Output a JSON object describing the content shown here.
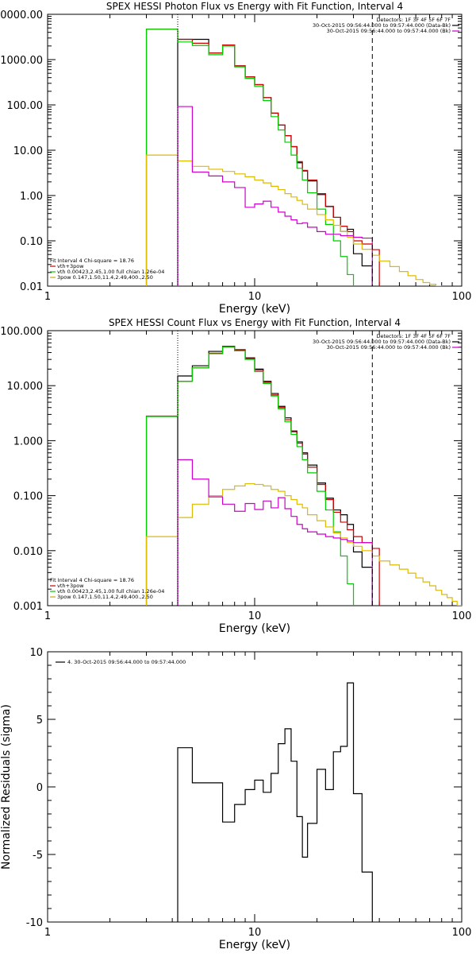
{
  "chart_data": [
    {
      "type": "line",
      "title": "SPEX HESSI Photon Flux vs Energy with Fit Function, Interval 4",
      "xlabel": "Energy (keV)",
      "ylabel": "",
      "xscale": "log",
      "yscale": "log",
      "xlim": [
        1,
        100
      ],
      "ylim": [
        0.01,
        10000
      ],
      "x_ticks": [
        "1",
        "10",
        "100"
      ],
      "y_ticks": [
        "0.01",
        "0.10",
        "1.00",
        "10.00",
        "100.00",
        "1000.00",
        "10000.00"
      ],
      "vlines": [
        {
          "x": 4.25,
          "style": "dotted"
        },
        {
          "x": 37,
          "style": "dashed"
        }
      ],
      "legend_top_right": [
        {
          "text": "Detectors: 1F 3F 4F 5F 6F 7F",
          "color": "#000000"
        },
        {
          "text": "30-Oct-2015 09:56:44.000 to 09:57:44.000 (Data-Bk)",
          "color": "#000000"
        },
        {
          "text": "30-Oct-2015 09:56:44.000 to 09:57:44.000 (Bk)",
          "color": "#cc00cc"
        }
      ],
      "legend_bottom_left": [
        {
          "text": "Fit Interval 4   Chi-square = 18.76",
          "color": "#000000"
        },
        {
          "text": "vth+3pow",
          "color": "#cc0000"
        },
        {
          "text": "vth 0.00423,2.45,1.00  full chian 1.26e-04",
          "color": "#00cc00"
        },
        {
          "text": "3pow 0.147,1.50,11.4,2.49,400.,2.50",
          "color": "#ccaa00"
        }
      ],
      "series": [
        {
          "name": "Data-Bk",
          "color": "#000000",
          "edges": [
            4.25,
            5,
            6,
            7,
            8,
            9,
            10,
            11,
            12,
            13,
            14,
            15,
            16,
            17,
            18,
            20,
            22,
            24,
            26,
            28,
            30,
            33,
            37
          ],
          "values": [
            2800,
            2800,
            1400,
            2100,
            730,
            415,
            280,
            145,
            66,
            36,
            21,
            12,
            5.3,
            3.5,
            2.1,
            1.05,
            0.57,
            0.33,
            0.16,
            0.18,
            0.052,
            0.028
          ]
        },
        {
          "name": "vth+3pow",
          "color": "#cc0000",
          "edges": [
            3,
            4.25,
            5,
            6,
            7,
            8,
            9,
            10,
            11,
            12,
            13,
            14,
            15,
            16,
            17,
            18,
            20,
            22,
            24,
            26,
            28,
            30,
            33,
            37,
            40
          ],
          "values": [
            4700,
            2800,
            2300,
            1400,
            2100,
            730,
            415,
            280,
            145,
            66,
            36,
            21,
            12,
            5.6,
            3.6,
            2.2,
            1.1,
            0.58,
            0.33,
            0.21,
            0.16,
            0.1,
            0.085,
            0.064
          ]
        },
        {
          "name": "vth",
          "color": "#00cc00",
          "edges": [
            3,
            4.25,
            5,
            6,
            7,
            8,
            9,
            10,
            11,
            12,
            13,
            14,
            15,
            16,
            17,
            18,
            20,
            22,
            24,
            26,
            28,
            30
          ],
          "values": [
            4700,
            2450,
            2050,
            1280,
            2000,
            690,
            385,
            255,
            125,
            55,
            28,
            15,
            7.8,
            4.0,
            2.2,
            1.15,
            0.5,
            0.23,
            0.1,
            0.045,
            0.018
          ]
        },
        {
          "name": "3pow",
          "color": "#ddbb00",
          "edges": [
            3,
            4.25,
            5,
            6,
            7,
            8,
            9,
            10,
            11,
            12,
            13,
            14,
            15,
            16,
            17,
            18,
            20,
            22,
            24,
            26,
            28,
            30,
            33,
            37,
            40,
            45,
            50,
            55,
            60,
            65,
            70,
            75,
            80
          ],
          "values": [
            7.8,
            5.8,
            4.4,
            3.8,
            3.4,
            3.0,
            2.6,
            2.2,
            1.9,
            1.6,
            1.35,
            1.1,
            0.93,
            0.78,
            0.64,
            0.5,
            0.38,
            0.29,
            0.22,
            0.16,
            0.12,
            0.085,
            0.065,
            0.048,
            0.036,
            0.027,
            0.021,
            0.017,
            0.014,
            0.012,
            0.011,
            0.01
          ]
        },
        {
          "name": "Bk",
          "color": "#cc00cc",
          "edges": [
            4.25,
            5,
            6,
            7,
            8,
            9,
            10,
            11,
            12,
            13,
            14,
            15,
            16,
            17,
            18,
            20,
            22,
            24,
            26,
            28,
            30,
            33,
            37
          ],
          "values": [
            92,
            3.3,
            2.7,
            2.0,
            1.5,
            0.55,
            0.65,
            0.75,
            0.55,
            0.43,
            0.35,
            0.29,
            0.24,
            0.25,
            0.2,
            0.16,
            0.14,
            0.14,
            0.13,
            0.13,
            0.12,
            0.115
          ]
        }
      ]
    },
    {
      "type": "line",
      "title": "SPEX HESSI Count Flux vs Energy with Fit Function, Interval 4",
      "xlabel": "Energy (keV)",
      "ylabel": "",
      "xscale": "log",
      "yscale": "log",
      "xlim": [
        1,
        100
      ],
      "ylim": [
        0.001,
        100
      ],
      "x_ticks": [
        "1",
        "10",
        "100"
      ],
      "y_ticks": [
        "0.001",
        "0.010",
        "0.100",
        "1.000",
        "10.000",
        "100.000"
      ],
      "vlines": [
        {
          "x": 4.25,
          "style": "dotted"
        },
        {
          "x": 37,
          "style": "dashed"
        }
      ],
      "legend_top_right": [
        {
          "text": "Detectors: 1F 3F 4F 5F 6F 7F",
          "color": "#000000"
        },
        {
          "text": "30-Oct-2015 09:56:44.000 to 09:57:44.000 (Data-Bk)",
          "color": "#000000"
        },
        {
          "text": "30-Oct-2015 09:56:44.000 to 09:57:44.000 (Bk)",
          "color": "#cc00cc"
        }
      ],
      "legend_bottom_left": [
        {
          "text": "Fit Interval 4   Chi-square = 18.76",
          "color": "#000000"
        },
        {
          "text": "vth+3pow",
          "color": "#cc0000"
        },
        {
          "text": "vth 0.00423,2.45,1.00  full chian 1.26e-04",
          "color": "#00cc00"
        },
        {
          "text": "3pow 0.147,1.50,11.4,2.49,400.,2.50",
          "color": "#ccaa00"
        }
      ],
      "series": [
        {
          "name": "Data-Bk",
          "color": "#000000",
          "edges": [
            4.25,
            5,
            6,
            7,
            8,
            9,
            10,
            11,
            12,
            13,
            14,
            15,
            16,
            17,
            18,
            20,
            22,
            24,
            26,
            28,
            30,
            33,
            37
          ],
          "values": [
            15,
            23,
            42,
            52,
            45,
            32,
            20,
            12,
            7.2,
            4.2,
            2.6,
            1.5,
            0.95,
            0.6,
            0.36,
            0.17,
            0.09,
            0.055,
            0.045,
            0.03,
            0.0095,
            0.005
          ]
        },
        {
          "name": "vth+3pow",
          "color": "#cc0000",
          "edges": [
            3,
            4.25,
            5,
            6,
            7,
            8,
            9,
            10,
            11,
            12,
            13,
            14,
            15,
            16,
            17,
            18,
            20,
            22,
            24,
            26,
            28,
            30,
            33,
            37,
            40
          ],
          "values": [
            2.8,
            12,
            21,
            39,
            52,
            44,
            31,
            19,
            11.5,
            6.8,
            4.0,
            2.4,
            1.45,
            0.9,
            0.57,
            0.33,
            0.16,
            0.085,
            0.05,
            0.033,
            0.024,
            0.018,
            0.014,
            0.011
          ]
        },
        {
          "name": "vth",
          "color": "#00cc00",
          "edges": [
            3,
            4.25,
            5,
            6,
            7,
            8,
            9,
            10,
            11,
            12,
            13,
            14,
            15,
            16,
            17,
            18,
            20,
            22,
            24,
            26,
            28,
            30
          ],
          "values": [
            2.75,
            12,
            21,
            38,
            50,
            43,
            30,
            18,
            11,
            6.5,
            3.8,
            2.2,
            1.3,
            0.78,
            0.45,
            0.26,
            0.12,
            0.055,
            0.022,
            0.008,
            0.0025
          ]
        },
        {
          "name": "3pow",
          "color": "#ddbb00",
          "edges": [
            3,
            4.25,
            5,
            6,
            7,
            8,
            9,
            10,
            11,
            12,
            13,
            14,
            15,
            16,
            17,
            18,
            20,
            22,
            24,
            26,
            28,
            30,
            33,
            37,
            40,
            45,
            50,
            55,
            60,
            65,
            70,
            75,
            80,
            85,
            90,
            95,
            100
          ],
          "values": [
            0.018,
            0.04,
            0.07,
            0.1,
            0.13,
            0.15,
            0.165,
            0.16,
            0.15,
            0.13,
            0.12,
            0.1,
            0.085,
            0.07,
            0.06,
            0.045,
            0.035,
            0.027,
            0.021,
            0.017,
            0.014,
            0.012,
            0.01,
            0.008,
            0.0065,
            0.0055,
            0.0046,
            0.0039,
            0.0032,
            0.0027,
            0.0023,
            0.0019,
            0.0016,
            0.0014,
            0.0012,
            0.001
          ]
        },
        {
          "name": "Bk",
          "color": "#cc00cc",
          "edges": [
            4.25,
            5,
            6,
            7,
            8,
            9,
            10,
            11,
            12,
            13,
            14,
            15,
            16,
            17,
            18,
            20,
            22,
            24,
            26,
            28,
            30,
            33,
            37
          ],
          "values": [
            0.45,
            0.2,
            0.095,
            0.07,
            0.052,
            0.072,
            0.056,
            0.08,
            0.06,
            0.092,
            0.058,
            0.042,
            0.03,
            0.025,
            0.022,
            0.02,
            0.018,
            0.017,
            0.016,
            0.015,
            0.014,
            0.014
          ]
        }
      ]
    },
    {
      "type": "line",
      "title": "",
      "xlabel": "Energy (keV)",
      "ylabel": "Normalized Residuals (sigma)",
      "xscale": "log",
      "yscale": "linear",
      "xlim": [
        1,
        100
      ],
      "ylim": [
        -10,
        10
      ],
      "x_ticks": [
        "1",
        "10",
        "100"
      ],
      "y_ticks": [
        "10",
        "5",
        "0",
        "-5",
        "-10"
      ],
      "legend": [
        {
          "text": "4. 30-Oct-2015 09:56:44.000 to 09:57:44.000",
          "color": "#000000"
        }
      ],
      "series": [
        {
          "name": "4. 30-Oct-2015 09:56:44.000 to 09:57:44.000",
          "color": "#000000",
          "edges": [
            4.25,
            5,
            6,
            7,
            8,
            9,
            10,
            11,
            12,
            13,
            14,
            15,
            16,
            17,
            18,
            20,
            22,
            24,
            26,
            28,
            30,
            33,
            37
          ],
          "values": [
            2.9,
            0.3,
            0.3,
            -2.6,
            -1.3,
            -0.2,
            0.5,
            -0.4,
            1.0,
            3.2,
            4.3,
            1.9,
            -2.2,
            -5.2,
            -2.7,
            1.3,
            -0.2,
            2.6,
            3.0,
            7.7,
            -0.5,
            -6.3
          ]
        }
      ]
    }
  ]
}
